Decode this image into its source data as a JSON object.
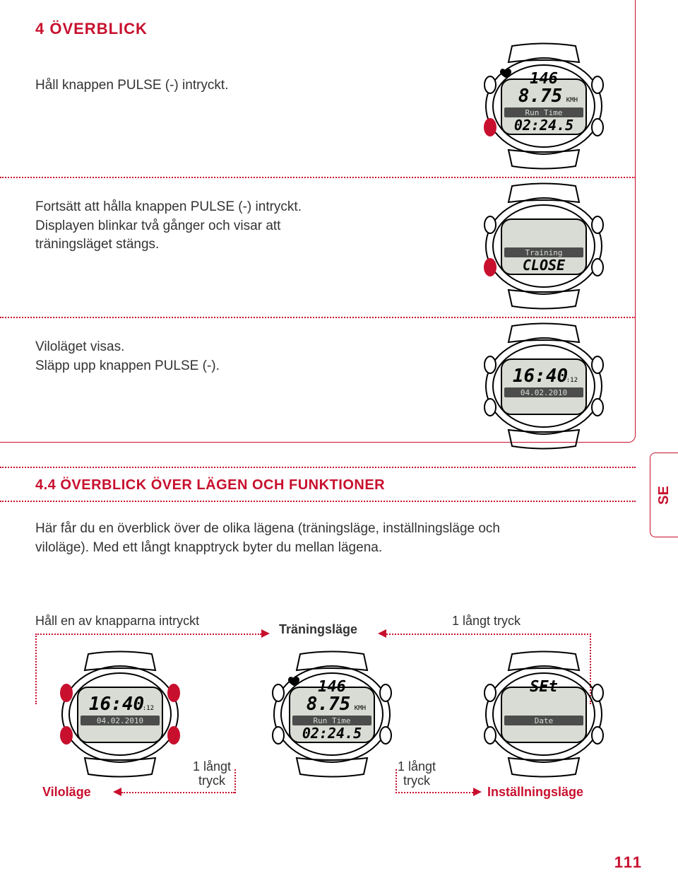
{
  "colors": {
    "accent": "#c8102e",
    "text": "#333333",
    "border": "#c8102e",
    "dotted": "#c8102e",
    "black": "#000000",
    "watch_screen": "#d8dcd4",
    "watch_button_active": "#c8102e"
  },
  "header": {
    "title": "4 ÖVERBLICK"
  },
  "steps": [
    {
      "text": "Håll knappen PULSE (-) intryckt.",
      "watch": {
        "line1": "146",
        "line2": "8.75",
        "unit": "KMH",
        "line3": "Run Time",
        "line4": "02:24.5",
        "heart_icon": true,
        "active_button": "bl"
      }
    },
    {
      "text": "Fortsätt att hålla knappen PULSE (-) intryckt. Displayen blinkar två gånger och visar att träningsläget stängs.",
      "watch": {
        "line1": "",
        "line2": "",
        "unit": "",
        "line3": "Training",
        "line4": "CLOSE",
        "heart_icon": false,
        "active_button": "bl"
      }
    },
    {
      "text": "Viloläget visas.\nSläpp upp knappen PULSE (-).",
      "watch": {
        "line1": "",
        "line2": "16:40",
        "unit": ":12",
        "line3": "04.02.2010",
        "line4": "",
        "heart_icon": false,
        "active_button": "none"
      }
    }
  ],
  "section": {
    "heading": "4.4 ÖVERBLICK ÖVER LÄGEN OCH FUNKTIONER",
    "body": "Här får du en överblick över de olika lägena (träningsläge, inställningsläge och viloläge). Med ett långt knapptryck byter du mellan lägena."
  },
  "diagram": {
    "top_left_label": "Håll en av knapparna intryckt",
    "top_center_label": "Träningsläge",
    "top_right_label": "1 långt tryck",
    "bottom_left_mode": "Viloläge",
    "bottom_mid_label": "1 långt tryck",
    "bottom_mid_label2": "1 långt tryck",
    "bottom_right_mode": "Inställningsläge",
    "watches": {
      "vilo": {
        "line1": "",
        "line2": "16:40",
        "unit": ":12",
        "line3": "04.02.2010",
        "line4": "",
        "all_red": true
      },
      "training": {
        "line1": "146",
        "line2": "8.75",
        "unit": "KMH",
        "line3": "Run Time",
        "line4": "02:24.5",
        "heart_icon": true
      },
      "setting": {
        "line1": "SEt",
        "line2": "",
        "unit": "",
        "line3": "Date",
        "line4": ""
      }
    }
  },
  "lang_badge": "SE",
  "page_number": "111"
}
